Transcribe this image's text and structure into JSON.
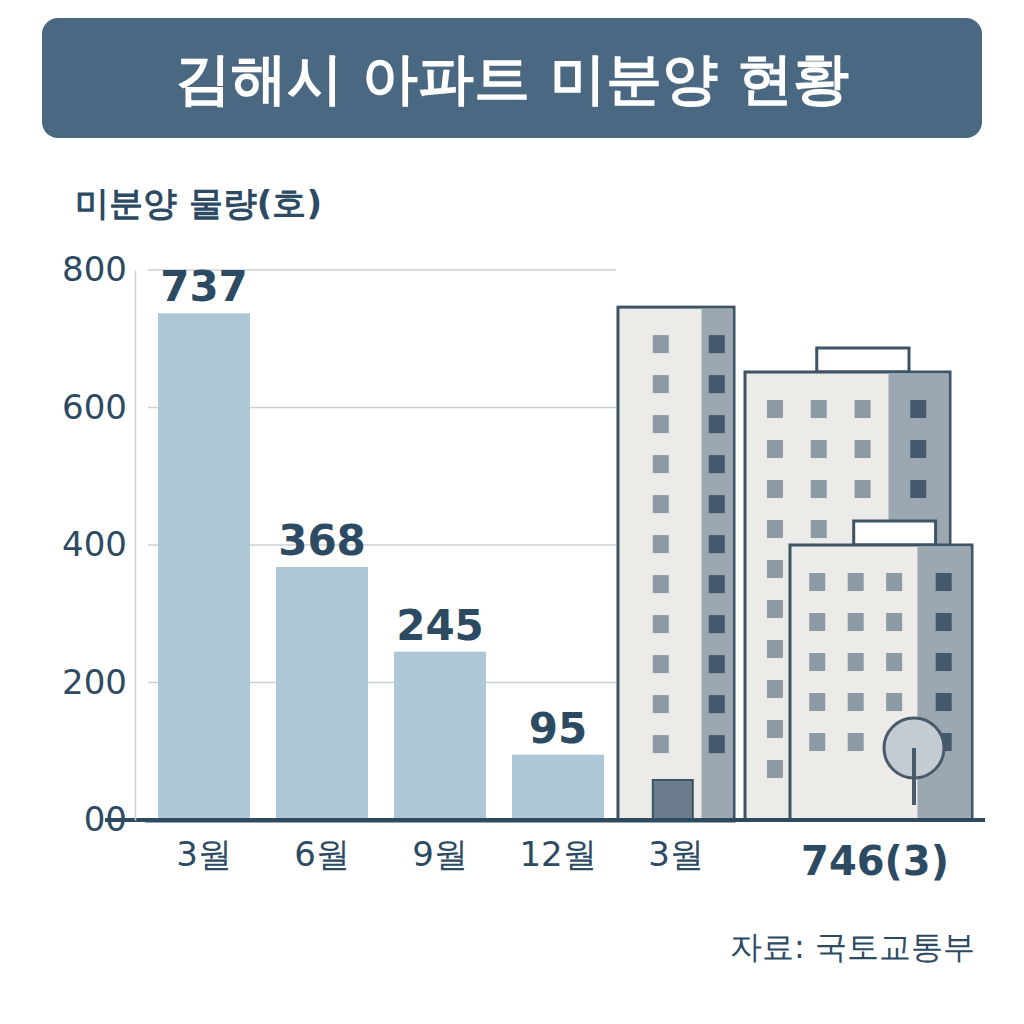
{
  "chart_data": {
    "type": "bar",
    "title": "김해시 아파트 미분양 현황",
    "y_label": "미분양 물량(호)",
    "categories": [
      "3월",
      "6월",
      "9월",
      "12월",
      "3월"
    ],
    "values": [
      737,
      368,
      245,
      95,
      746
    ],
    "value_labels": [
      "737",
      "368",
      "245",
      "95",
      "746(3)"
    ],
    "data_labels": true,
    "colors": [
      "#aec7d6",
      "#aec7d6",
      "#aec7d6",
      "#aec7d6",
      "#ecebe7"
    ],
    "ylim": [
      0,
      800
    ],
    "yticks": [
      {
        "value": 0,
        "label": "00"
      },
      200,
      400,
      600,
      800
    ],
    "grid": true,
    "source": "자료: 국토교통부"
  }
}
